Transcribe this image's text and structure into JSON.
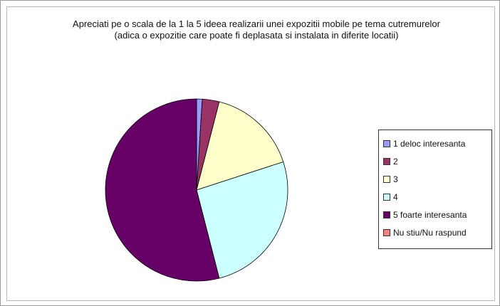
{
  "chart_data": {
    "type": "pie",
    "title": "Apreciati pe o scala de la 1 la 5 ideea realizarii unei expozitii mobile pe tema cutremurelor (adica o expozitie care poate fi deplasata si instalata in diferite locatii)",
    "categories": [
      "1 deloc interesanta",
      "2",
      "3",
      "4",
      "5 foarte interesanta",
      "Nu stiu/Nu raspund"
    ],
    "values": [
      1,
      3,
      16,
      26,
      54,
      0
    ],
    "unit": "%",
    "colors": [
      "#9999ff",
      "#993366",
      "#ffffcc",
      "#ccffff",
      "#660066",
      "#ff8080"
    ],
    "legend_position": "right",
    "grid": false
  }
}
